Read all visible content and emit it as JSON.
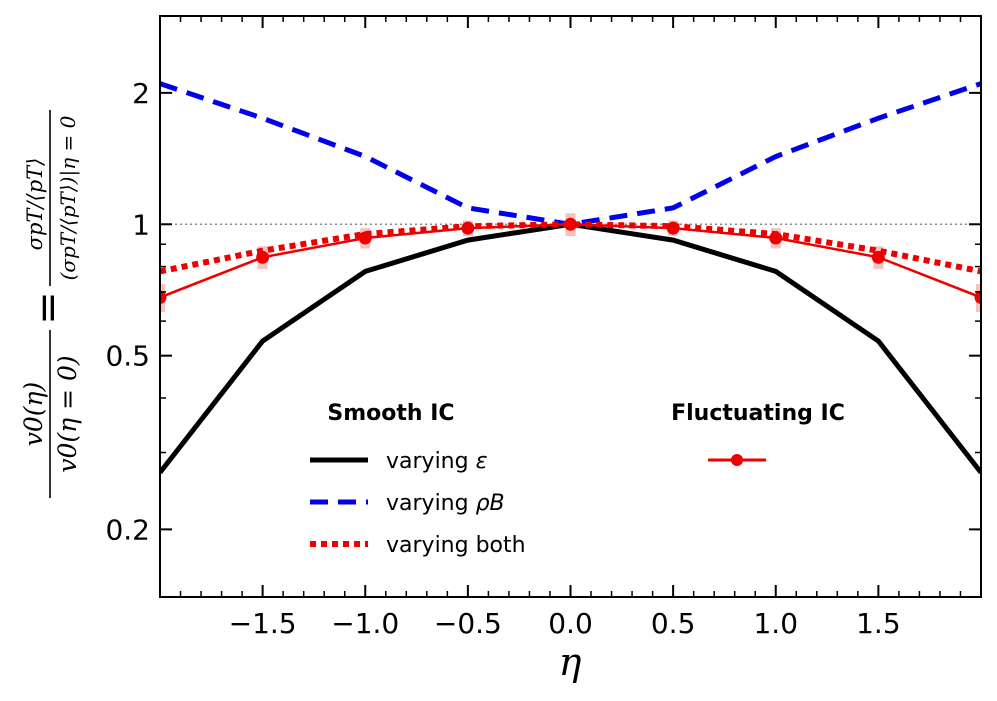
{
  "chart_data": {
    "type": "line",
    "title": "",
    "xlabel": "η",
    "ylabel": {
      "part1_num": "v0(η)",
      "part1_den": "v0(η = 0)",
      "equals": "=",
      "part2_num": "σpT/⟨pT⟩",
      "part2_den": "(σpT/⟨pT⟩)|η = 0"
    },
    "xlim": [
      -2.0,
      2.0
    ],
    "ylim": [
      0.14,
      3.0
    ],
    "yscale": "log",
    "xticks": [
      -1.5,
      -1.0,
      -0.5,
      0.0,
      0.5,
      1.0,
      1.5
    ],
    "xtick_labels": [
      "−1.5",
      "−1.0",
      "−0.5",
      "0.0",
      "0.5",
      "1.0",
      "1.5"
    ],
    "yticks": [
      0.2,
      0.5,
      1,
      2
    ],
    "ytick_labels": [
      "0.2",
      "0.5",
      "1",
      "2"
    ],
    "reference_line": 1.0,
    "x": [
      -2.0,
      -1.5,
      -1.0,
      -0.5,
      0.0,
      0.5,
      1.0,
      1.5,
      2.0
    ],
    "series": [
      {
        "name": "varying ε",
        "group": "Smooth IC",
        "style": "solid",
        "color": "#000000",
        "values": [
          0.27,
          0.54,
          0.78,
          0.92,
          1.0,
          0.92,
          0.78,
          0.54,
          0.27
        ]
      },
      {
        "name": "varying ρB",
        "group": "Smooth IC",
        "style": "dashed",
        "color": "#0000ee",
        "values": [
          2.1,
          1.75,
          1.43,
          1.09,
          1.0,
          1.09,
          1.43,
          1.75,
          2.1
        ]
      },
      {
        "name": "varying both",
        "group": "Smooth IC",
        "style": "dotted",
        "color": "#ee0000",
        "values": [
          0.78,
          0.87,
          0.95,
          0.99,
          1.0,
          0.99,
          0.95,
          0.87,
          0.78
        ]
      },
      {
        "name": "",
        "group": "Fluctuating IC",
        "style": "solid-markers",
        "color": "#ee0000",
        "values": [
          0.68,
          0.84,
          0.93,
          0.98,
          1.0,
          0.98,
          0.93,
          0.84,
          0.68
        ],
        "errors": [
          0.05,
          0.05,
          0.05,
          0.04,
          0.06,
          0.04,
          0.05,
          0.05,
          0.05
        ]
      }
    ],
    "legend": {
      "smooth_title": "Smooth IC",
      "fluct_title": "Fluctuating IC",
      "smooth_labels": [
        "varying ",
        "varying ",
        "varying both"
      ],
      "smooth_symbols": [
        "ε",
        "ρB"
      ],
      "position": "lower-center"
    }
  }
}
